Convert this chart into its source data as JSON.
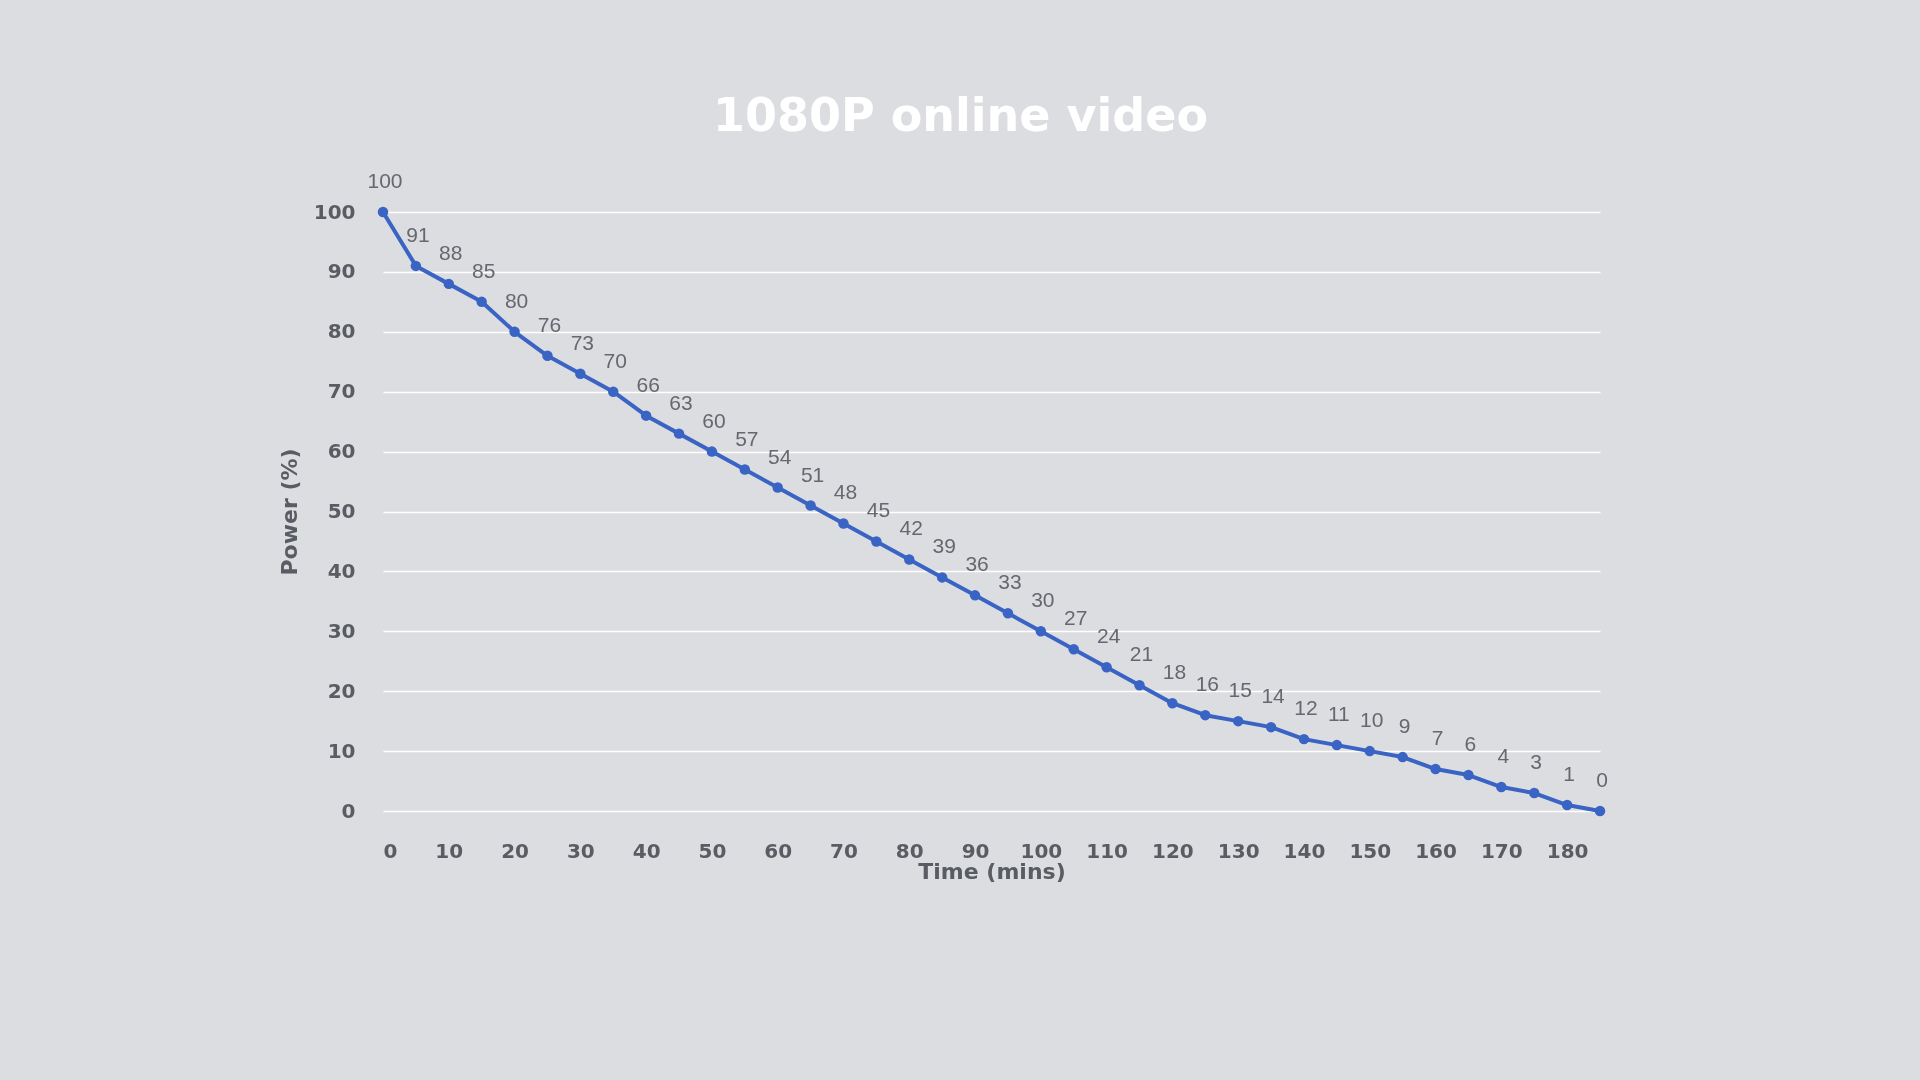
{
  "chart_data": {
    "type": "line",
    "title": "1080P online video",
    "xlabel": "Time (mins)",
    "ylabel": "Power (%)",
    "x": [
      0,
      5,
      10,
      15,
      20,
      25,
      30,
      35,
      40,
      45,
      50,
      55,
      60,
      65,
      70,
      75,
      80,
      85,
      90,
      95,
      100,
      105,
      110,
      115,
      120,
      125,
      130,
      135,
      140,
      145,
      150,
      155,
      160,
      165,
      170,
      175,
      180,
      185
    ],
    "series": [
      {
        "color": "#3a64c4",
        "values": [
          100,
          91,
          88,
          85,
          80,
          76,
          73,
          70,
          66,
          63,
          60,
          57,
          54,
          51,
          48,
          45,
          42,
          39,
          36,
          33,
          30,
          27,
          24,
          21,
          18,
          16,
          15,
          14,
          12,
          11,
          10,
          9,
          7,
          6,
          4,
          3,
          1,
          0
        ]
      }
    ],
    "xlim": [
      0,
      185
    ],
    "xticks": [
      0,
      10,
      20,
      30,
      40,
      50,
      60,
      70,
      80,
      90,
      100,
      110,
      120,
      130,
      140,
      150,
      160,
      170,
      180
    ],
    "ylim": [
      0,
      100
    ],
    "yticks": [
      0,
      10,
      20,
      30,
      40,
      50,
      60,
      70,
      80,
      90,
      100
    ],
    "grid": "y",
    "marker": "circle",
    "line_style": "solid",
    "data_labels": true
  }
}
